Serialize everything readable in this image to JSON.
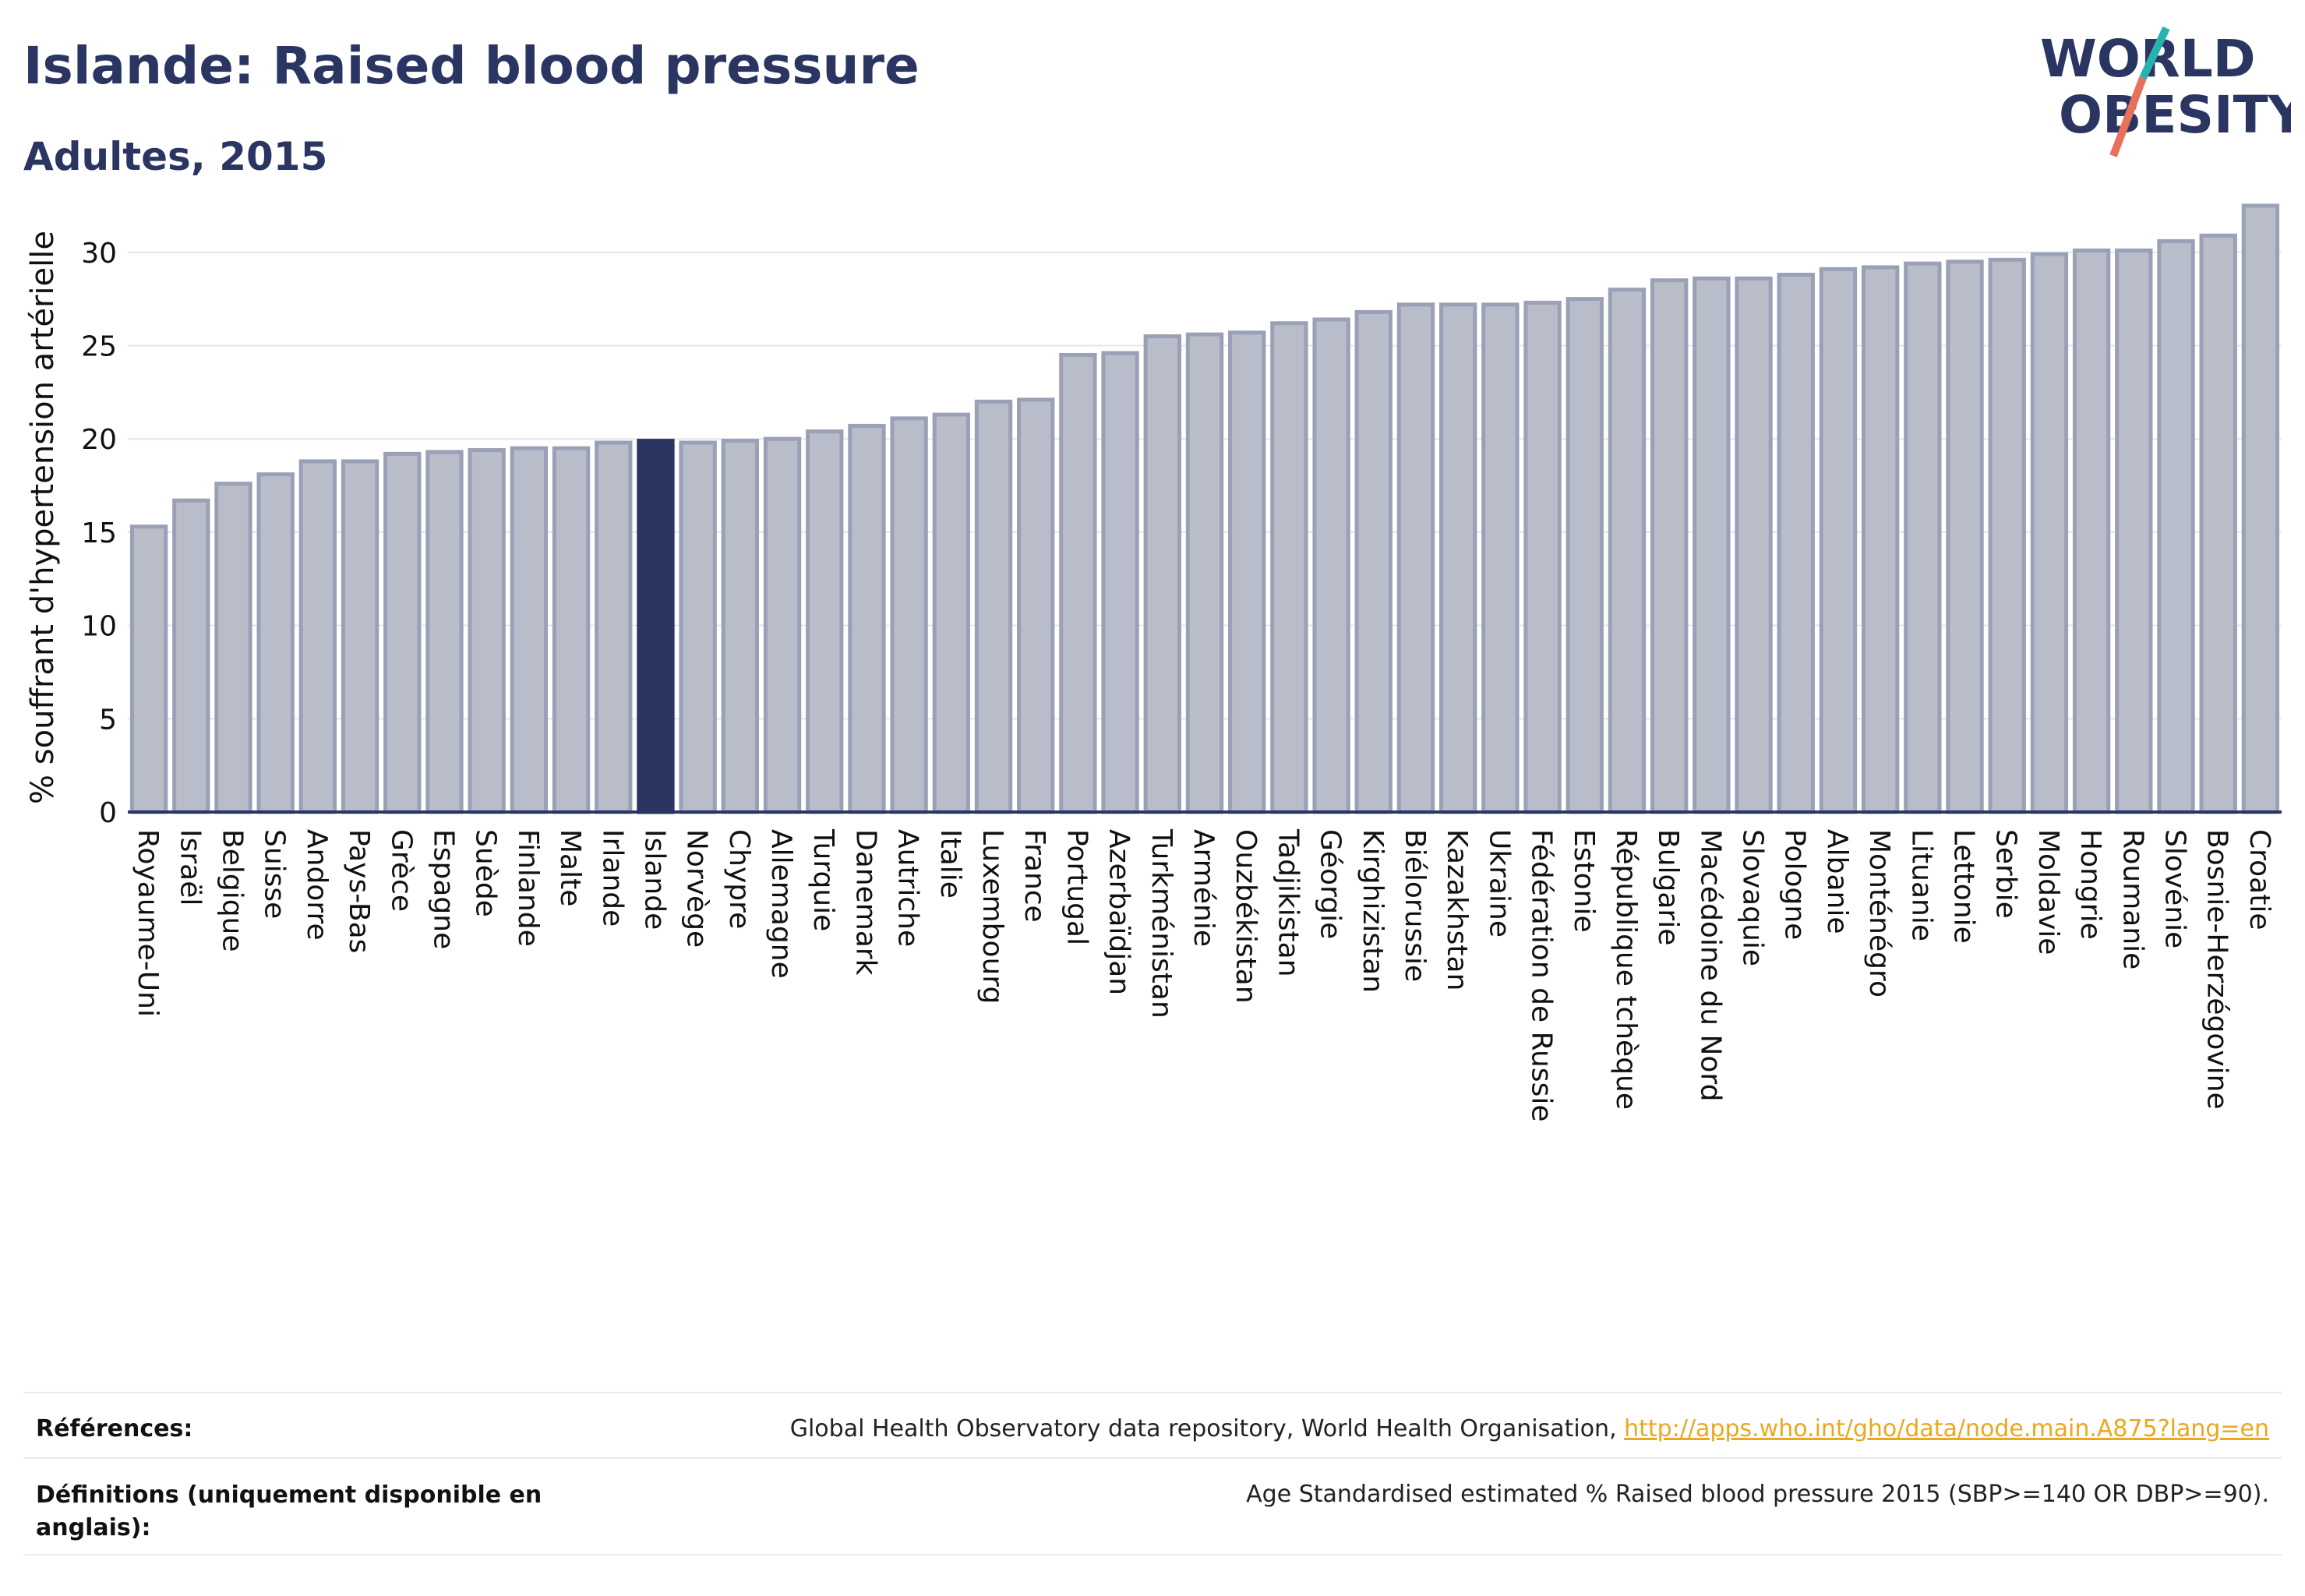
{
  "header": {
    "title": "Islande: Raised blood pressure",
    "subtitle": "Adultes, 2015"
  },
  "logo": {
    "line1": "WORLD",
    "line2": "OBESITY",
    "colors": {
      "text": "#2a3562",
      "teal": "#27b1b0",
      "coral": "#e8705c"
    }
  },
  "chart_data": {
    "type": "bar",
    "title": "",
    "xlabel": "",
    "ylabel": "% souffrant d'hypertension artérielle",
    "ylim": [
      0,
      33.5
    ],
    "yticks": [
      0,
      5,
      10,
      15,
      20,
      25,
      30
    ],
    "grid": true,
    "highlight": "Islande",
    "colors": {
      "bar": "#b9bdca",
      "bar_edge": "#9aa0b6",
      "highlight": "#2a3562",
      "axis": "#2a3562",
      "grid": "#e3e6ee"
    },
    "categories": [
      "Royaume-Uni",
      "Israël",
      "Belgique",
      "Suisse",
      "Andorre",
      "Pays-Bas",
      "Grèce",
      "Espagne",
      "Suède",
      "Finlande",
      "Malte",
      "Irlande",
      "Islande",
      "Norvège",
      "Chypre",
      "Allemagne",
      "Turquie",
      "Danemark",
      "Autriche",
      "Italie",
      "Luxembourg",
      "France",
      "Portugal",
      "Azerbaïdjan",
      "Turkménistan",
      "Arménie",
      "Ouzbékistan",
      "Tadjikistan",
      "Géorgie",
      "Kirghizistan",
      "Biélorussie",
      "Kazakhstan",
      "Ukraine",
      "Fédération de Russie",
      "Estonie",
      "République tchèque",
      "Bulgarie",
      "Macédoine du Nord",
      "Slovaquie",
      "Pologne",
      "Albanie",
      "Monténégro",
      "Lituanie",
      "Lettonie",
      "Serbie",
      "Moldavie",
      "Hongrie",
      "Roumanie",
      "Slovénie",
      "Bosnie-Herzégovine",
      "Croatie"
    ],
    "values": [
      15.3,
      16.7,
      17.6,
      18.1,
      18.8,
      18.8,
      19.2,
      19.3,
      19.4,
      19.5,
      19.5,
      19.8,
      19.9,
      19.8,
      19.9,
      20.0,
      20.4,
      20.7,
      21.1,
      21.3,
      22.0,
      22.1,
      24.5,
      24.6,
      25.5,
      25.6,
      25.7,
      26.2,
      26.4,
      26.8,
      27.2,
      27.2,
      27.2,
      27.3,
      27.5,
      28.0,
      28.5,
      28.6,
      28.6,
      28.8,
      29.1,
      29.2,
      29.4,
      29.5,
      29.6,
      29.9,
      30.1,
      30.1,
      30.6,
      30.9,
      32.5
    ]
  },
  "footer": {
    "references_label": "Références:",
    "references_text": "Global Health Observatory data repository, World Health Organisation, ",
    "references_link": "http://apps.who.int/gho/data/node.main.A875?lang=en",
    "definitions_label": "Définitions (uniquement disponible en anglais):",
    "definitions_text": "Age Standardised estimated % Raised blood pressure 2015 (SBP>=140 OR DBP>=90)."
  }
}
